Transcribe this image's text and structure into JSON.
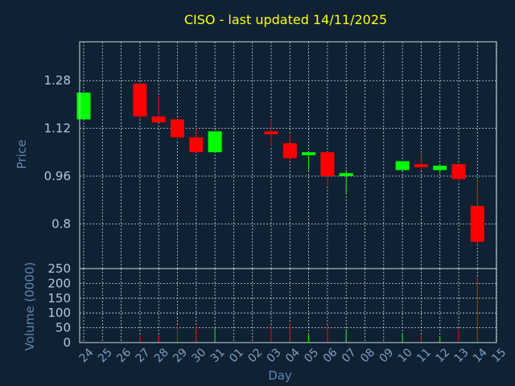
{
  "chart_data": {
    "type": "candlestick",
    "title": "CISO - last updated 14/11/2025",
    "xlabel": "Day",
    "price_axis": {
      "label": "Price",
      "ylim": [
        0.65,
        1.41
      ],
      "ticks": [
        0.8,
        0.96,
        1.12,
        1.28
      ]
    },
    "volume_axis": {
      "label": "Volume (0000)",
      "ylim": [
        0,
        250
      ],
      "ticks": [
        0,
        50,
        100,
        150,
        200,
        250
      ]
    },
    "x_tick_labels": [
      "24",
      "25",
      "26",
      "27",
      "28",
      "29",
      "30",
      "31",
      "01",
      "02",
      "03",
      "04",
      "05",
      "06",
      "07",
      "08",
      "09",
      "10",
      "11",
      "12",
      "13",
      "14",
      "15"
    ],
    "grid": true,
    "colors": {
      "up": "#00ff00",
      "down": "#ff0000"
    },
    "candles": [
      {
        "day": "24",
        "open": 1.15,
        "high": 1.24,
        "low": 1.15,
        "close": 1.24,
        "volume": 0
      },
      {
        "day": "27",
        "open": 1.27,
        "high": 1.27,
        "low": 1.15,
        "close": 1.16,
        "volume": 25
      },
      {
        "day": "28",
        "open": 1.16,
        "high": 1.23,
        "low": 1.14,
        "close": 1.14,
        "volume": 25
      },
      {
        "day": "29",
        "open": 1.15,
        "high": 1.15,
        "low": 1.08,
        "close": 1.09,
        "volume": 55
      },
      {
        "day": "30",
        "open": 1.09,
        "high": 1.12,
        "low": 1.04,
        "close": 1.04,
        "volume": 55
      },
      {
        "day": "31",
        "open": 1.04,
        "high": 1.11,
        "low": 1.04,
        "close": 1.11,
        "volume": 50
      },
      {
        "day": "03",
        "open": 1.11,
        "high": 1.15,
        "low": 1.06,
        "close": 1.1,
        "volume": 60
      },
      {
        "day": "04",
        "open": 1.07,
        "high": 1.1,
        "low": 1.01,
        "close": 1.02,
        "volume": 65
      },
      {
        "day": "05",
        "open": 1.03,
        "high": 1.04,
        "low": 0.98,
        "close": 1.04,
        "volume": 30
      },
      {
        "day": "06",
        "open": 1.04,
        "high": 1.04,
        "low": 0.93,
        "close": 0.96,
        "volume": 60
      },
      {
        "day": "07",
        "open": 0.96,
        "high": 0.98,
        "low": 0.9,
        "close": 0.97,
        "volume": 45
      },
      {
        "day": "10",
        "open": 0.98,
        "high": 1.01,
        "low": 0.98,
        "close": 1.01,
        "volume": 30
      },
      {
        "day": "11",
        "open": 1.0,
        "high": 1.04,
        "low": 0.98,
        "close": 0.99,
        "volume": 25
      },
      {
        "day": "12",
        "open": 0.98,
        "high": 1.0,
        "low": 0.97,
        "close": 0.995,
        "volume": 20
      },
      {
        "day": "13",
        "open": 1.0,
        "high": 1.0,
        "low": 0.94,
        "close": 0.95,
        "volume": 45
      },
      {
        "day": "14",
        "open": 0.86,
        "high": 0.95,
        "low": 0.73,
        "close": 0.74,
        "volume": 220
      }
    ]
  }
}
